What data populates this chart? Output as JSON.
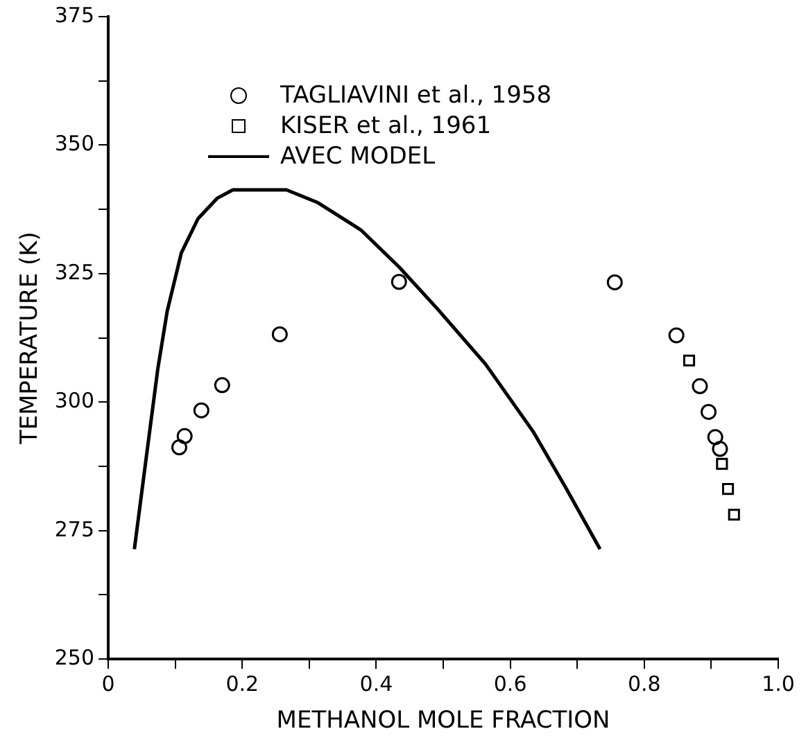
{
  "chart_data": {
    "type": "scatter",
    "xlabel": "METHANOL MOLE FRACTION",
    "ylabel": "TEMPERATURE (K)",
    "xlim": [
      0,
      1
    ],
    "ylim": [
      250,
      375
    ],
    "xticks": [
      0,
      {
        "value": 0.1,
        "label": null
      },
      {
        "value": 0.2,
        "label": "0.2"
      },
      {
        "value": 0.3,
        "label": null
      },
      {
        "value": 0.4,
        "label": "0.4"
      },
      {
        "value": 0.5,
        "label": null
      },
      {
        "value": 0.6,
        "label": "0.6"
      },
      {
        "value": 0.7,
        "label": null
      },
      {
        "value": 0.8,
        "label": "0.8"
      },
      {
        "value": 0.9,
        "label": null
      },
      {
        "value": 1,
        "label": "1.0"
      }
    ],
    "yticks": [
      250,
      {
        "value": 262.5,
        "label": null
      },
      275,
      {
        "value": 287.5,
        "label": null
      },
      300,
      {
        "value": 312.5,
        "label": null
      },
      325,
      {
        "value": 337.5,
        "label": null
      },
      350,
      {
        "value": 362.5,
        "label": null
      },
      375
    ],
    "grid": false,
    "legend": "top left",
    "series": [
      {
        "name": "TAGLIAVINI et al., 1958",
        "marker": "circle",
        "color": "#000000",
        "x": [
          0.106,
          0.114,
          0.139,
          0.17,
          0.256,
          0.434,
          0.756,
          0.848,
          0.883,
          0.896,
          0.906,
          0.913
        ],
        "values": [
          291.2,
          293.4,
          298.4,
          303.3,
          313.2,
          323.4,
          323.3,
          313,
          303.1,
          298.1,
          293.2,
          290.9
        ]
      },
      {
        "name": "KISER et al., 1961",
        "marker": "square",
        "color": "#000000",
        "x": [
          0.867,
          0.916,
          0.925,
          0.934
        ],
        "values": [
          308.1,
          288,
          283.1,
          278.1
        ]
      },
      {
        "name": "AVEC MODEL",
        "type": "line",
        "marker": "none",
        "line_style": "solid",
        "color": "#000000",
        "x": [
          0.039,
          0.056,
          0.074,
          0.088,
          0.109,
          0.134,
          0.163,
          0.186,
          0.266,
          0.313,
          0.377,
          0.434,
          0.491,
          0.563,
          0.634,
          0.684,
          0.734
        ],
        "values": [
          271.4,
          288.5,
          306.5,
          317.7,
          329,
          335.7,
          339.7,
          341.3,
          341.3,
          338.8,
          333.5,
          326.3,
          318.2,
          307.4,
          294.3,
          283.1,
          271.4
        ]
      }
    ]
  }
}
